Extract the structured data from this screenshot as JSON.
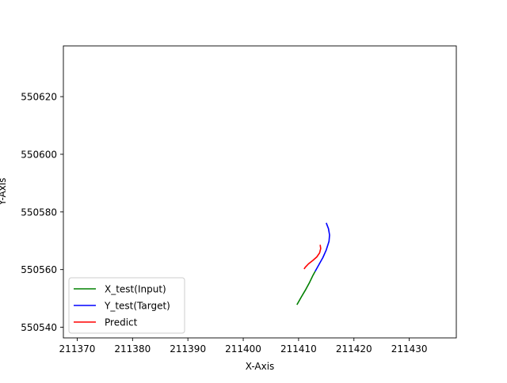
{
  "chart_data": {
    "type": "line",
    "title": "",
    "xlabel": "X-Axis",
    "ylabel": "Y-Axis",
    "xlim": [
      211367.5,
      211438.5
    ],
    "ylim": [
      550536.3,
      550637.6
    ],
    "xticks": [
      211370,
      211380,
      211390,
      211400,
      211410,
      211420,
      211430
    ],
    "yticks": [
      550540,
      550560,
      550580,
      550600,
      550620
    ],
    "grid": false,
    "legend_position": "lower-left",
    "series": [
      {
        "name": "X_test(Input)",
        "color": "#008000",
        "x": [
          211409.7,
          211410.5,
          211411.3,
          211412.0,
          211412.6,
          211413.0
        ],
        "y": [
          550547.8,
          550550.5,
          550553.1,
          550555.6,
          550558.0,
          550559.4
        ]
      },
      {
        "name": "Y_test(Target)",
        "color": "#0000ff",
        "x": [
          211413.0,
          211413.7,
          211414.4,
          211415.0,
          211415.5,
          211415.6,
          211415.4,
          211415.0
        ],
        "y": [
          550559.4,
          550561.8,
          550564.2,
          550566.8,
          550569.8,
          550572.0,
          550574.2,
          550576.2
        ]
      },
      {
        "name": "Predict",
        "color": "#ff0000",
        "x": [
          211411.0,
          211411.2,
          211411.8,
          211412.6,
          211413.3,
          211413.8,
          211414.0,
          211413.9
        ],
        "y": [
          550560.2,
          550560.8,
          550562.0,
          550563.2,
          550564.4,
          550565.8,
          550567.3,
          550568.6
        ]
      }
    ]
  }
}
